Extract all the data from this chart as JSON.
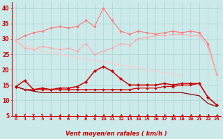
{
  "x": [
    0,
    1,
    2,
    3,
    4,
    5,
    6,
    7,
    8,
    9,
    10,
    11,
    12,
    13,
    14,
    15,
    16,
    17,
    18,
    19,
    20,
    21,
    22,
    23
  ],
  "line1": [
    29.5,
    31.0,
    32.0,
    32.5,
    33.5,
    34.0,
    33.5,
    34.0,
    36.0,
    34.0,
    40.0,
    36.0,
    32.5,
    31.5,
    32.5,
    32.0,
    31.5,
    32.0,
    32.5,
    32.0,
    32.5,
    32.0,
    28.5,
    18.5
  ],
  "line2": [
    29.5,
    27.0,
    26.5,
    27.5,
    27.0,
    26.5,
    27.0,
    26.0,
    28.5,
    25.0,
    26.0,
    27.0,
    28.5,
    28.0,
    30.0,
    30.5,
    31.0,
    31.0,
    31.5,
    31.5,
    31.0,
    31.0,
    27.5,
    18.5
  ],
  "line3": [
    29.5,
    28.0,
    27.0,
    26.0,
    25.5,
    25.0,
    24.5,
    24.0,
    23.5,
    23.0,
    22.5,
    22.0,
    21.5,
    21.0,
    20.5,
    20.0,
    19.5,
    19.0,
    18.5,
    18.0,
    null,
    null,
    null,
    null
  ],
  "line4": [
    14.5,
    16.5,
    13.5,
    14.0,
    13.5,
    14.0,
    14.0,
    14.5,
    16.0,
    19.5,
    21.0,
    19.5,
    17.0,
    15.0,
    15.0,
    15.0,
    15.0,
    15.5,
    15.0,
    15.5,
    15.5,
    15.5,
    11.0,
    8.5
  ],
  "line5": [
    14.5,
    13.5,
    13.5,
    13.5,
    13.5,
    13.5,
    13.5,
    13.5,
    13.5,
    13.5,
    13.5,
    13.5,
    13.5,
    13.5,
    14.0,
    14.0,
    14.0,
    14.5,
    14.5,
    15.0,
    15.0,
    15.5,
    11.0,
    8.5
  ],
  "line6": [
    14.5,
    13.5,
    13.0,
    12.5,
    12.5,
    12.5,
    12.5,
    12.5,
    12.5,
    12.5,
    12.5,
    12.5,
    12.5,
    12.5,
    12.5,
    12.5,
    12.5,
    12.5,
    12.5,
    12.5,
    12.0,
    11.5,
    9.0,
    8.0
  ],
  "bg_color": "#cceaea",
  "grid_color": "#aad4d4",
  "xlabel": "Vent moyen/en rafales ( km/h )",
  "xlabel_color": "#cc0000",
  "tick_color": "#cc0000",
  "arrow_color": "#cc0000",
  "ylim": [
    5,
    42
  ],
  "yticks": [
    5,
    10,
    15,
    20,
    25,
    30,
    35,
    40
  ],
  "line1_color": "#ff7777",
  "line2_color": "#ffaaaa",
  "line3_color": "#ffcccc",
  "line4_color": "#cc0000",
  "line5_color": "#cc0000",
  "line6_color": "#990000",
  "arrow_angles": [
    -90,
    -90,
    -90,
    -90,
    -90,
    -45,
    -45,
    -45,
    -45,
    -45,
    -45,
    -45,
    -45,
    -45,
    -45,
    -45,
    -45,
    -45,
    -45,
    -45,
    -45,
    -45,
    -45,
    -45
  ]
}
